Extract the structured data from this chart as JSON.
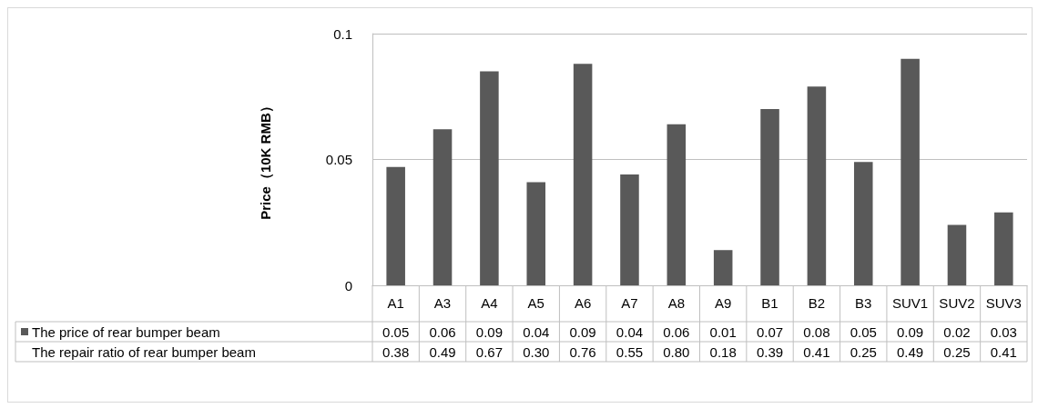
{
  "chart_data": {
    "type": "bar",
    "ylabel": "Price（10K RMB）",
    "categories": [
      "A1",
      "A3",
      "A4",
      "A5",
      "A6",
      "A7",
      "A8",
      "A9",
      "B1",
      "B2",
      "B3",
      "SUV1",
      "SUV2",
      "SUV3"
    ],
    "series": [
      {
        "name": "The price of rear bumper beam",
        "color": "#595959",
        "values": [
          0.047,
          0.062,
          0.085,
          0.041,
          0.088,
          0.044,
          0.064,
          0.014,
          0.07,
          0.079,
          0.049,
          0.09,
          0.024,
          0.029
        ],
        "value_labels": [
          "0.05",
          "0.06",
          "0.09",
          "0.04",
          "0.09",
          "0.04",
          "0.06",
          "0.01",
          "0.07",
          "0.08",
          "0.05",
          "0.09",
          "0.02",
          "0.03"
        ]
      }
    ],
    "annotations": [
      "The repair ratio of rear bumper beam",
      "0.38",
      "0.49",
      "0.67",
      "0.30",
      "0.76",
      "0.55",
      "0.80",
      "0.18",
      "0.39",
      "0.41",
      "0.25",
      "0.49",
      "0.25",
      "0.41"
    ],
    "ylim": [
      0,
      0.1
    ],
    "yticks": [
      0,
      0.05,
      0.1
    ],
    "grid": "y"
  }
}
